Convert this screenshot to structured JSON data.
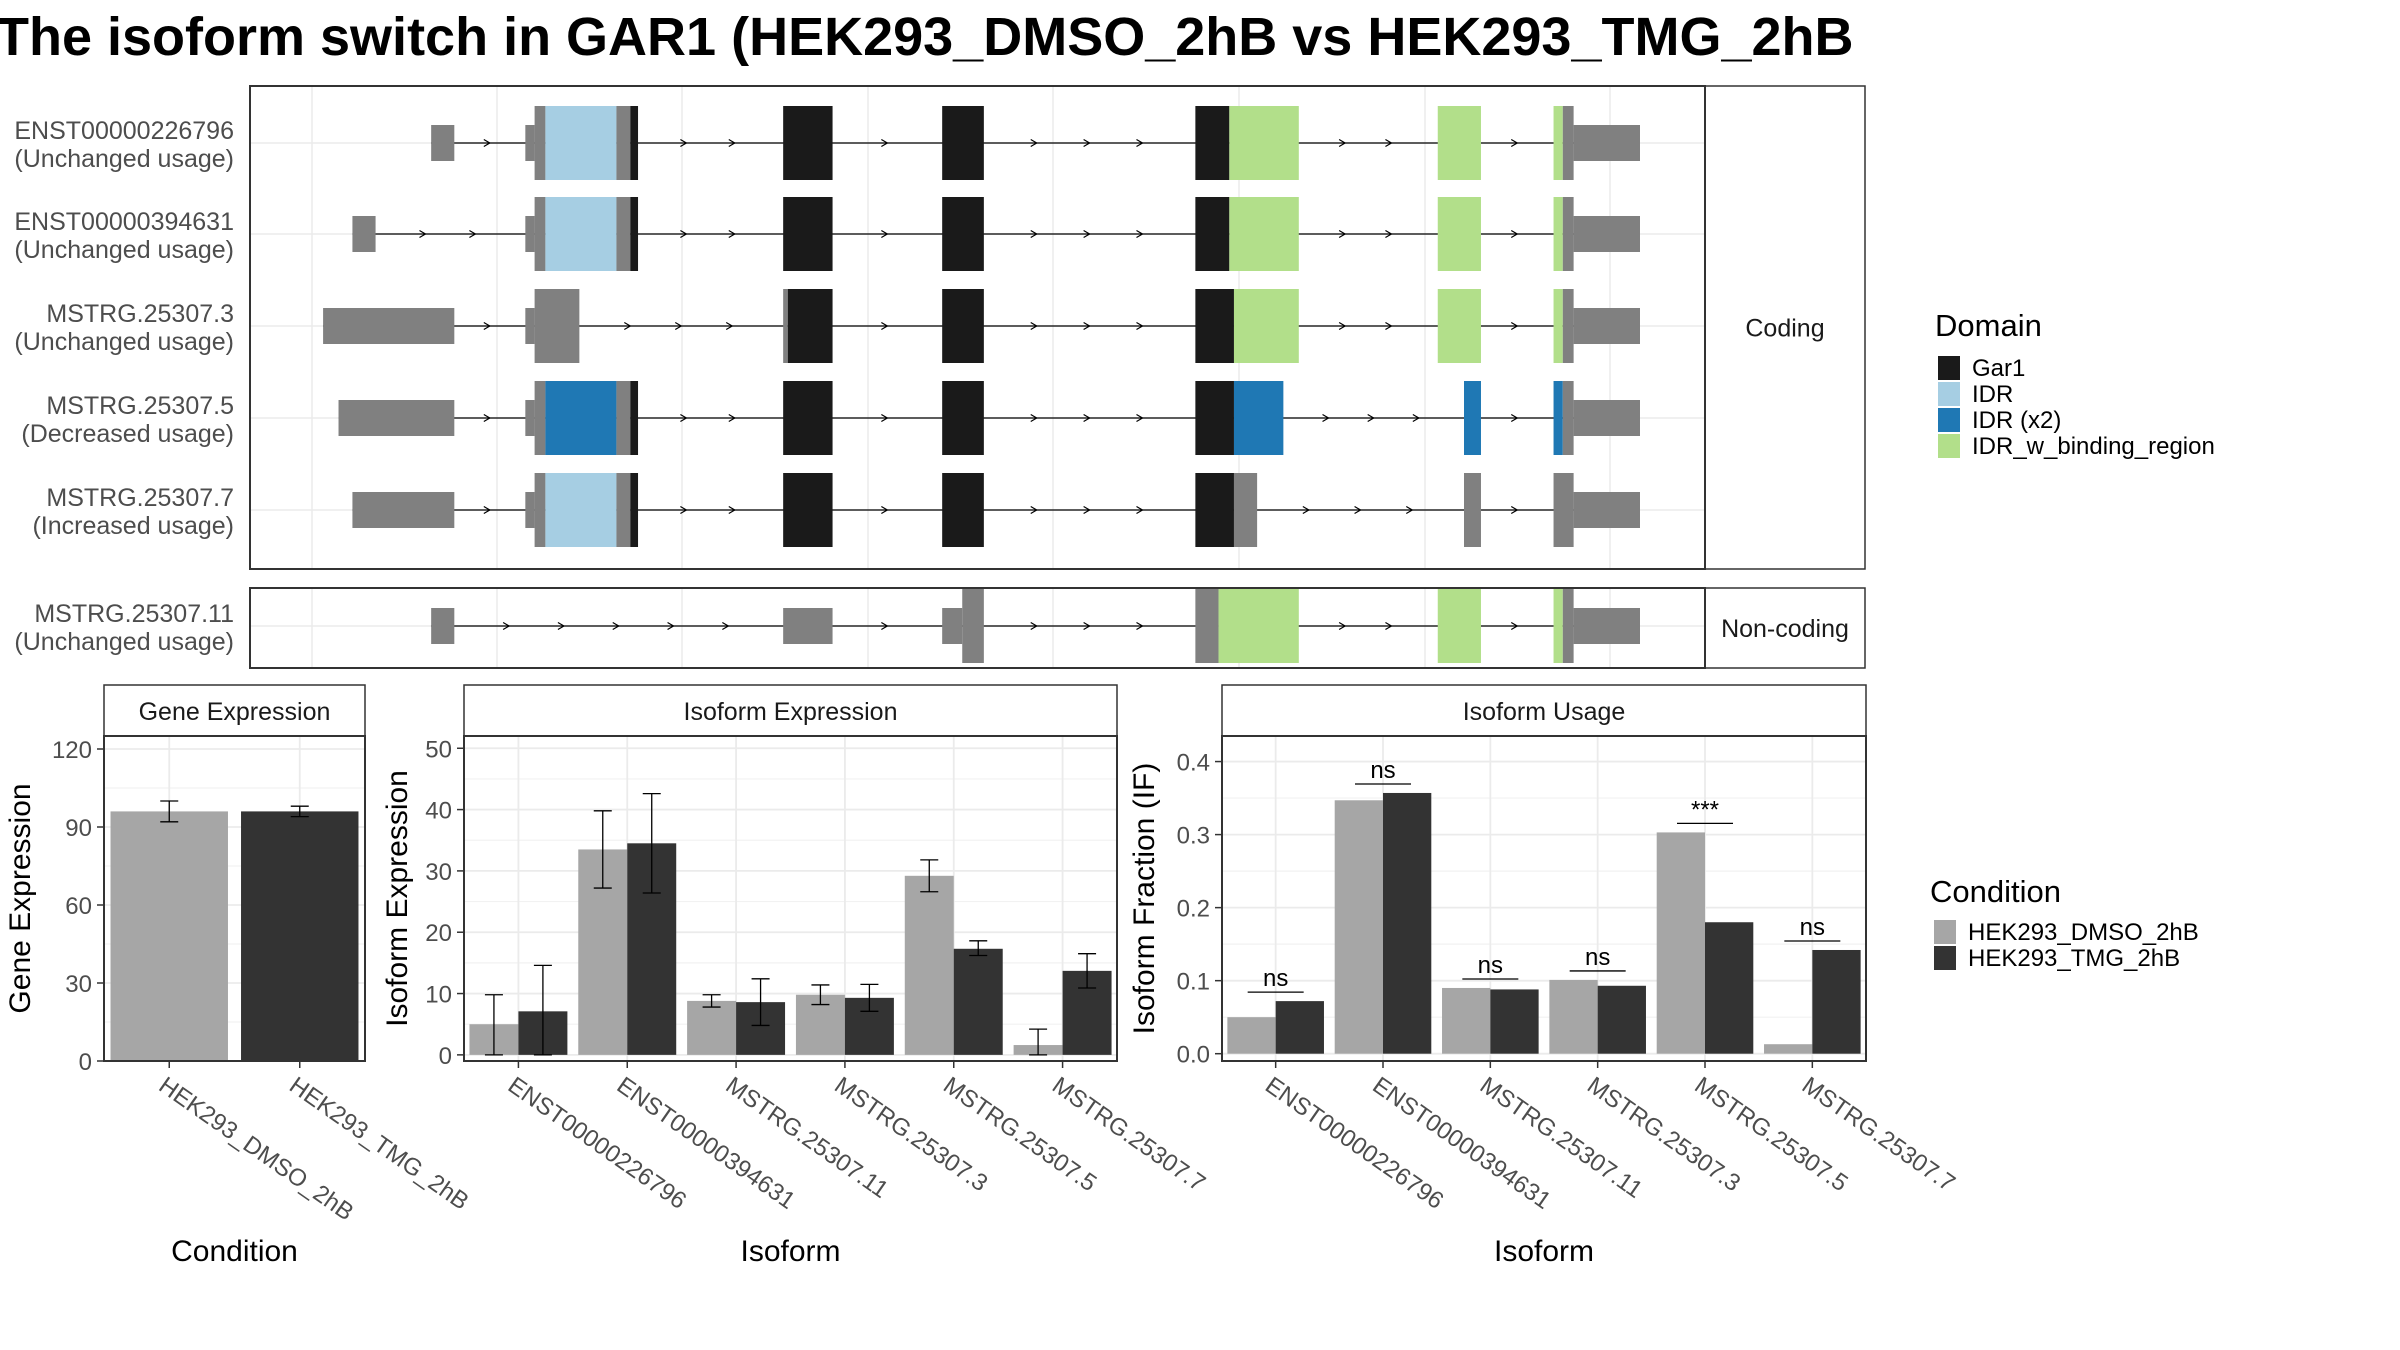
{
  "title": "The isoform switch in GAR1 (HEK293_DMSO_2hB vs HEK293_TMG_2hB",
  "colors": {
    "Gar1": "#1a1a1a",
    "IDR": "#a6cee3",
    "IDR (x2)": "#1f78b4",
    "IDR_w_binding_region": "#b2df8a",
    "utr": "#808080",
    "dmso": "#a6a6a6",
    "tmg": "#333333"
  },
  "legend_domain": {
    "title": "Domain",
    "items": [
      {
        "label": "Gar1",
        "color_key": "Gar1"
      },
      {
        "label": "IDR",
        "color_key": "IDR"
      },
      {
        "label": "IDR (x2)",
        "color_key": "IDR (x2)"
      },
      {
        "label": "IDR_w_binding_region",
        "color_key": "IDR_w_binding_region"
      }
    ]
  },
  "legend_condition": {
    "title": "Condition",
    "items": [
      {
        "label": "HEK293_DMSO_2hB",
        "color_key": "dmso"
      },
      {
        "label": "HEK293_TMG_2hB",
        "color_key": "tmg"
      }
    ]
  },
  "structure": {
    "panels": [
      {
        "label": "Coding",
        "isoforms": [
          {
            "id": "ENST00000226796",
            "usage": "(Unchanged usage)",
            "span": [
              72,
              855
            ],
            "segments": [
              {
                "s": 72,
                "e": 87,
                "type": "utr"
              },
              {
                "s": 133,
                "e": 139,
                "type": "utr"
              },
              {
                "s": 139,
                "e": 146,
                "type": "utr_tall"
              },
              {
                "s": 146,
                "e": 192,
                "type": "IDR"
              },
              {
                "s": 192,
                "e": 201,
                "type": "utr_tall"
              },
              {
                "s": 201,
                "e": 206,
                "type": "Gar1"
              },
              {
                "s": 300,
                "e": 332,
                "type": "Gar1"
              },
              {
                "s": 403,
                "e": 430,
                "type": "Gar1"
              },
              {
                "s": 567,
                "e": 589,
                "type": "Gar1"
              },
              {
                "s": 589,
                "e": 634,
                "type": "IDR_w_binding_region"
              },
              {
                "s": 724,
                "e": 752,
                "type": "IDR_w_binding_region"
              },
              {
                "s": 799,
                "e": 805,
                "type": "IDR_w_binding_region"
              },
              {
                "s": 805,
                "e": 812,
                "type": "utr_tall"
              },
              {
                "s": 812,
                "e": 855,
                "type": "utr"
              }
            ]
          },
          {
            "id": "ENST00000394631",
            "usage": "(Unchanged usage)",
            "span": [
              21,
              855
            ],
            "segments": [
              {
                "s": 21,
                "e": 36,
                "type": "utr"
              },
              {
                "s": 133,
                "e": 139,
                "type": "utr"
              },
              {
                "s": 139,
                "e": 146,
                "type": "utr_tall"
              },
              {
                "s": 146,
                "e": 192,
                "type": "IDR"
              },
              {
                "s": 192,
                "e": 201,
                "type": "utr_tall"
              },
              {
                "s": 201,
                "e": 206,
                "type": "Gar1"
              },
              {
                "s": 300,
                "e": 332,
                "type": "Gar1"
              },
              {
                "s": 403,
                "e": 430,
                "type": "Gar1"
              },
              {
                "s": 567,
                "e": 589,
                "type": "Gar1"
              },
              {
                "s": 589,
                "e": 634,
                "type": "IDR_w_binding_region"
              },
              {
                "s": 724,
                "e": 752,
                "type": "IDR_w_binding_region"
              },
              {
                "s": 799,
                "e": 805,
                "type": "IDR_w_binding_region"
              },
              {
                "s": 805,
                "e": 812,
                "type": "utr_tall"
              },
              {
                "s": 812,
                "e": 855,
                "type": "utr"
              }
            ]
          },
          {
            "id": "MSTRG.25307.3",
            "usage": "(Unchanged usage)",
            "span": [
              2,
              855
            ],
            "segments": [
              {
                "s": 2,
                "e": 87,
                "type": "utr"
              },
              {
                "s": 133,
                "e": 139,
                "type": "utr"
              },
              {
                "s": 139,
                "e": 168,
                "type": "utr_tall"
              },
              {
                "s": 300,
                "e": 303,
                "type": "utr_tall"
              },
              {
                "s": 303,
                "e": 332,
                "type": "Gar1"
              },
              {
                "s": 403,
                "e": 430,
                "type": "Gar1"
              },
              {
                "s": 567,
                "e": 592,
                "type": "Gar1"
              },
              {
                "s": 592,
                "e": 634,
                "type": "IDR_w_binding_region"
              },
              {
                "s": 724,
                "e": 752,
                "type": "IDR_w_binding_region"
              },
              {
                "s": 799,
                "e": 805,
                "type": "IDR_w_binding_region"
              },
              {
                "s": 805,
                "e": 812,
                "type": "utr_tall"
              },
              {
                "s": 812,
                "e": 855,
                "type": "utr"
              }
            ]
          },
          {
            "id": "MSTRG.25307.5",
            "usage": "(Decreased usage)",
            "span": [
              12,
              855
            ],
            "segments": [
              {
                "s": 12,
                "e": 87,
                "type": "utr"
              },
              {
                "s": 133,
                "e": 139,
                "type": "utr"
              },
              {
                "s": 139,
                "e": 146,
                "type": "utr_tall"
              },
              {
                "s": 146,
                "e": 192,
                "type": "IDR (x2)"
              },
              {
                "s": 192,
                "e": 201,
                "type": "utr_tall"
              },
              {
                "s": 201,
                "e": 206,
                "type": "Gar1"
              },
              {
                "s": 300,
                "e": 332,
                "type": "Gar1"
              },
              {
                "s": 403,
                "e": 430,
                "type": "Gar1"
              },
              {
                "s": 567,
                "e": 592,
                "type": "Gar1"
              },
              {
                "s": 592,
                "e": 624,
                "type": "IDR (x2)"
              },
              {
                "s": 741,
                "e": 752,
                "type": "IDR (x2)"
              },
              {
                "s": 799,
                "e": 805,
                "type": "IDR (x2)"
              },
              {
                "s": 805,
                "e": 812,
                "type": "utr_tall"
              },
              {
                "s": 812,
                "e": 855,
                "type": "utr"
              }
            ]
          },
          {
            "id": "MSTRG.25307.7",
            "usage": "(Increased usage)",
            "span": [
              21,
              855
            ],
            "segments": [
              {
                "s": 21,
                "e": 87,
                "type": "utr"
              },
              {
                "s": 133,
                "e": 139,
                "type": "utr"
              },
              {
                "s": 139,
                "e": 146,
                "type": "utr_tall"
              },
              {
                "s": 146,
                "e": 192,
                "type": "IDR"
              },
              {
                "s": 192,
                "e": 201,
                "type": "utr_tall"
              },
              {
                "s": 201,
                "e": 206,
                "type": "Gar1"
              },
              {
                "s": 300,
                "e": 332,
                "type": "Gar1"
              },
              {
                "s": 403,
                "e": 430,
                "type": "Gar1"
              },
              {
                "s": 567,
                "e": 592,
                "type": "Gar1"
              },
              {
                "s": 592,
                "e": 607,
                "type": "utr_tall"
              },
              {
                "s": 741,
                "e": 752,
                "type": "utr_tall"
              },
              {
                "s": 799,
                "e": 812,
                "type": "utr_tall"
              },
              {
                "s": 812,
                "e": 855,
                "type": "utr"
              }
            ]
          }
        ]
      },
      {
        "label": "Non-coding",
        "isoforms": [
          {
            "id": "MSTRG.25307.11",
            "usage": "(Unchanged usage)",
            "span": [
              72,
              855
            ],
            "segments": [
              {
                "s": 72,
                "e": 87,
                "type": "utr"
              },
              {
                "s": 300,
                "e": 332,
                "type": "utr"
              },
              {
                "s": 403,
                "e": 416,
                "type": "utr"
              },
              {
                "s": 416,
                "e": 430,
                "type": "utr_tall"
              },
              {
                "s": 567,
                "e": 582,
                "type": "utr_tall"
              },
              {
                "s": 582,
                "e": 634,
                "type": "IDR_w_binding_region"
              },
              {
                "s": 724,
                "e": 752,
                "type": "IDR_w_binding_region"
              },
              {
                "s": 799,
                "e": 805,
                "type": "IDR_w_binding_region"
              },
              {
                "s": 805,
                "e": 812,
                "type": "utr_tall"
              },
              {
                "s": 812,
                "e": 855,
                "type": "utr"
              }
            ]
          }
        ]
      }
    ]
  },
  "chart_data": [
    {
      "type": "bar",
      "title": "Gene Expression",
      "xlabel": "Condition",
      "ylabel": "Gene Expression",
      "ylim": [
        0,
        125
      ],
      "yticks": [
        0,
        30,
        60,
        90,
        120
      ],
      "categories": [
        "HEK293_DMSO_2hB",
        "HEK293_TMG_2hB"
      ],
      "values": [
        96,
        96
      ],
      "error_low": [
        92,
        94
      ],
      "error_high": [
        100,
        98
      ]
    },
    {
      "type": "bar",
      "title": "Isoform Expression",
      "xlabel": "Isoform",
      "ylabel": "Isoform Expression",
      "ylim": [
        -1,
        52
      ],
      "yticks": [
        0,
        10,
        20,
        30,
        40,
        50
      ],
      "categories": [
        "ENST00000226796",
        "ENST00000394631",
        "MSTRG.25307.11",
        "MSTRG.25307.3",
        "MSTRG.25307.5",
        "MSTRG.25307.7"
      ],
      "series": [
        {
          "name": "HEK293_DMSO_2hB",
          "values": [
            5,
            33.5,
            8.8,
            9.8,
            29.2,
            1.6
          ],
          "error_low": [
            0,
            27.2,
            7.8,
            8.2,
            26.6,
            0
          ],
          "error_high": [
            9.8,
            39.8,
            9.8,
            11.4,
            31.8,
            4.2
          ]
        },
        {
          "name": "HEK293_TMG_2hB",
          "values": [
            7.1,
            34.5,
            8.6,
            9.3,
            17.3,
            13.7
          ],
          "error_low": [
            0,
            26.4,
            4.8,
            7.1,
            16.2,
            10.9
          ],
          "error_high": [
            14.6,
            42.6,
            12.4,
            11.5,
            18.6,
            16.5
          ]
        }
      ]
    },
    {
      "type": "bar",
      "title": "Isoform Usage",
      "xlabel": "Isoform",
      "ylabel": "Isoform Fraction (IF)",
      "ylim": [
        -0.01,
        0.435
      ],
      "yticks": [
        0.0,
        0.1,
        0.2,
        0.3,
        0.4
      ],
      "ytick_labels": [
        "0.0",
        "0.1",
        "0.2",
        "0.3",
        "0.4"
      ],
      "categories": [
        "ENST00000226796",
        "ENST00000394631",
        "MSTRG.25307.11",
        "MSTRG.25307.3",
        "MSTRG.25307.5",
        "MSTRG.25307.7"
      ],
      "series": [
        {
          "name": "HEK293_DMSO_2hB",
          "values": [
            0.05,
            0.347,
            0.09,
            0.101,
            0.303,
            0.013
          ]
        },
        {
          "name": "HEK293_TMG_2hB",
          "values": [
            0.072,
            0.357,
            0.088,
            0.093,
            0.18,
            0.142
          ]
        }
      ],
      "significance": [
        "ns",
        "ns",
        "ns",
        "ns",
        "***",
        "ns"
      ]
    }
  ]
}
